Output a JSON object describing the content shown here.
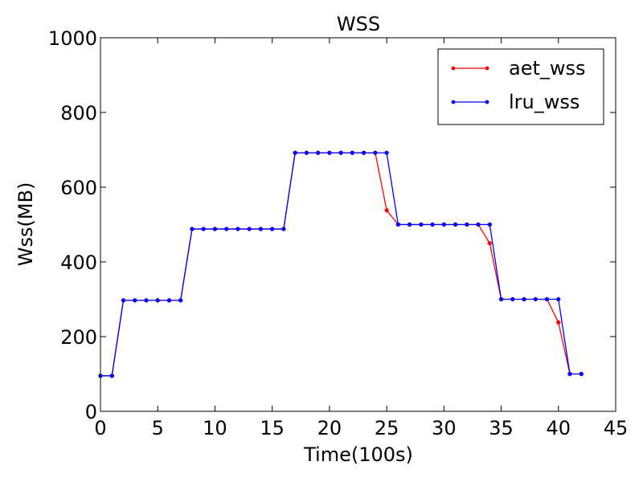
{
  "chart_data": {
    "type": "line",
    "title": "WSS",
    "xlabel": "Time(100s)",
    "ylabel": "Wss(MB)",
    "xlim": [
      0,
      45
    ],
    "ylim": [
      0,
      1000
    ],
    "xticks": [
      "0",
      "5",
      "10",
      "15",
      "20",
      "25",
      "30",
      "35",
      "40",
      "45"
    ],
    "yticks": [
      "0",
      "200",
      "400",
      "600",
      "800",
      "1000"
    ],
    "grid": false,
    "legend_position": "top-right",
    "x": [
      0,
      1,
      2,
      3,
      4,
      5,
      6,
      7,
      8,
      9,
      10,
      11,
      12,
      13,
      14,
      15,
      16,
      17,
      18,
      19,
      20,
      21,
      22,
      23,
      24,
      25,
      26,
      27,
      28,
      29,
      30,
      31,
      32,
      33,
      34,
      35,
      36,
      37,
      38,
      39,
      40,
      41,
      42
    ],
    "series": [
      {
        "name": "aet_wss",
        "color": "#ff0000",
        "values": [
          95,
          95,
          297,
          297,
          297,
          297,
          297,
          297,
          488,
          488,
          488,
          488,
          488,
          488,
          488,
          488,
          488,
          692,
          692,
          692,
          692,
          692,
          692,
          692,
          692,
          538,
          500,
          500,
          500,
          500,
          500,
          500,
          500,
          500,
          450,
          300,
          300,
          300,
          300,
          300,
          238,
          100,
          100
        ]
      },
      {
        "name": "lru_wss",
        "color": "#0000ff",
        "values": [
          95,
          95,
          297,
          297,
          297,
          297,
          297,
          297,
          488,
          488,
          488,
          488,
          488,
          488,
          488,
          488,
          488,
          692,
          692,
          692,
          692,
          692,
          692,
          692,
          692,
          692,
          500,
          500,
          500,
          500,
          500,
          500,
          500,
          500,
          500,
          300,
          300,
          300,
          300,
          300,
          300,
          100,
          100
        ]
      }
    ]
  }
}
